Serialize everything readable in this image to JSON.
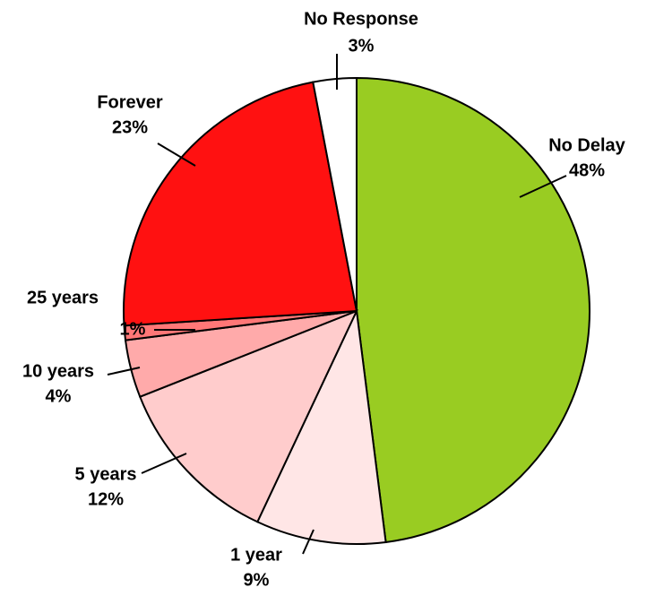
{
  "chart_data": {
    "type": "pie",
    "categories": [
      "No Delay",
      "1 year",
      "5 years",
      "10 years",
      "25 years",
      "Forever",
      "No Response"
    ],
    "values": [
      48,
      9,
      12,
      4,
      1,
      23,
      3
    ],
    "value_labels": [
      "48%",
      "9%",
      "12%",
      "4%",
      "1%",
      "23%",
      "3%"
    ],
    "colors": [
      "#99cc22",
      "#ffe6e6",
      "#ffcccc",
      "#ffaaaa",
      "#ff7777",
      "#ff1111",
      "#ffffff"
    ]
  }
}
